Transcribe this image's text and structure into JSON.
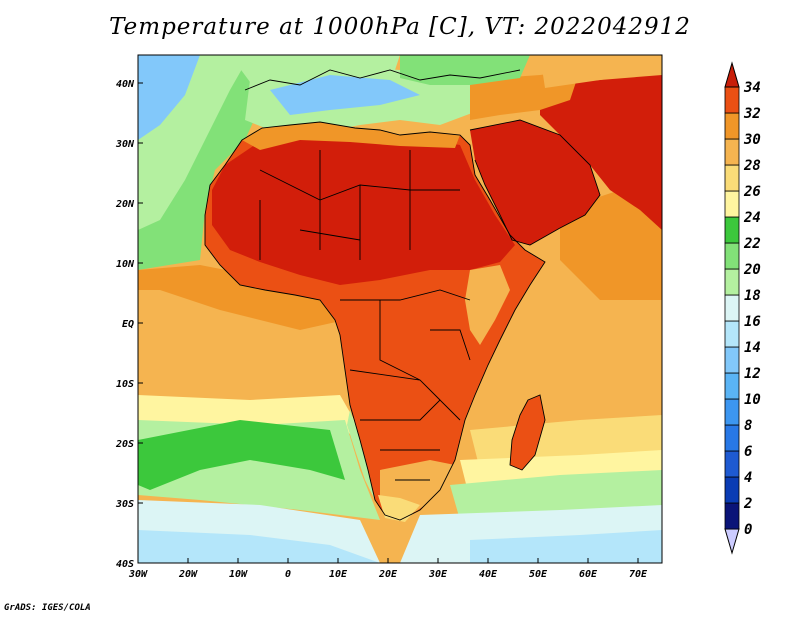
{
  "title": "Temperature at 1000hPa [C], VT: 2022042912",
  "credit": "GrADS: IGES/COLA",
  "map": {
    "region": "Africa",
    "lon_range": [
      -30,
      75
    ],
    "lat_range": [
      -40,
      45
    ],
    "variable": "Temperature at 1000hPa",
    "units": "C",
    "lat_labels": [
      "40S",
      "30S",
      "20S",
      "10S",
      "EQ",
      "10N",
      "20N",
      "30N",
      "40N"
    ],
    "lon_labels": [
      "30W",
      "20W",
      "10W",
      "0",
      "10E",
      "20E",
      "30E",
      "40E",
      "50E",
      "60E",
      "70E"
    ]
  },
  "colorbar": {
    "labels": [
      "0",
      "2",
      "4",
      "6",
      "8",
      "10",
      "12",
      "14",
      "16",
      "18",
      "20",
      "22",
      "24",
      "26",
      "28",
      "30",
      "32",
      "34"
    ],
    "colors": [
      "#0a1478",
      "#0a3cb4",
      "#1e5ad2",
      "#2878e6",
      "#3c96f0",
      "#5ab4f5",
      "#82c8fa",
      "#b4e6fa",
      "#dcf5f5",
      "#b4f0a0",
      "#82e178",
      "#3cc83c",
      "#fff5a0",
      "#fadc78",
      "#f5b450",
      "#f09628",
      "#eb5014",
      "#d21e0a",
      "#c81e0a"
    ]
  }
}
